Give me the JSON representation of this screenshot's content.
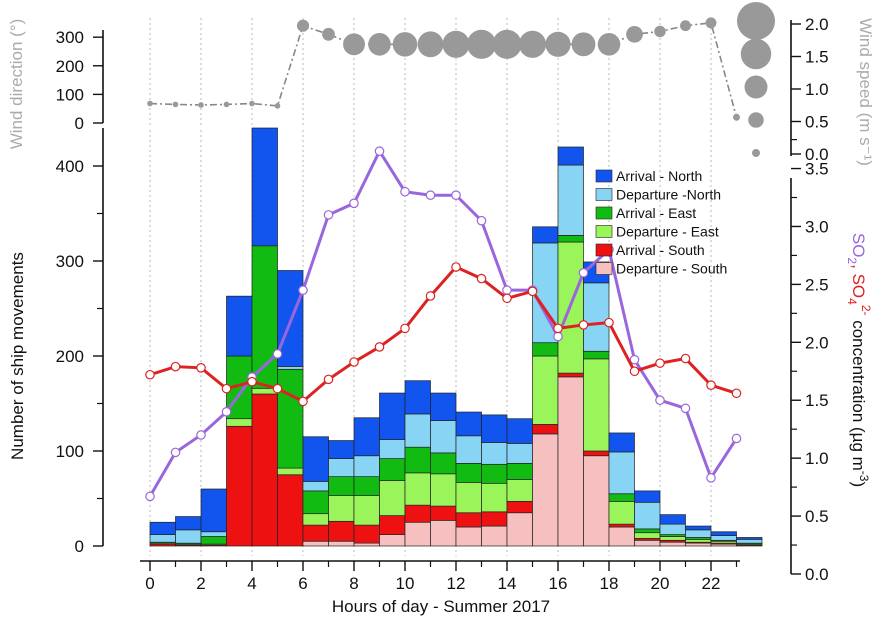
{
  "chart_data": [
    {
      "type": "scatter",
      "panel": "top",
      "x": [
        0,
        1,
        2,
        3,
        4,
        5,
        6,
        7,
        8,
        9,
        10,
        11,
        12,
        13,
        14,
        15,
        16,
        17,
        18,
        19,
        20,
        21,
        22,
        23
      ],
      "wind_direction": [
        68,
        65,
        63,
        65,
        68,
        60,
        340,
        310,
        275,
        275,
        275,
        275,
        275,
        275,
        275,
        275,
        275,
        275,
        275,
        310,
        320,
        340,
        350,
        20
      ],
      "wind_speed": [
        0.05,
        0.05,
        0.05,
        0.05,
        0.05,
        0.05,
        0.55,
        0.6,
        1.3,
        1.35,
        1.5,
        1.6,
        1.7,
        1.85,
        1.85,
        1.7,
        1.55,
        1.45,
        1.35,
        0.9,
        0.5,
        0.45,
        0.45,
        0.15
      ],
      "ylabel_left": "Wind direction (°)",
      "ylabel_right": "Wind speed (m s⁻¹)",
      "left_ticks": [
        "0",
        "100",
        "200",
        "300"
      ],
      "right_ticks": [
        "0.0",
        "0.5",
        "1.0",
        "1.5",
        "2.0"
      ],
      "ylim_left": [
        0,
        360
      ],
      "size_legend": [
        2.0,
        1.5,
        1.0,
        0.5,
        0.0
      ],
      "colors": {
        "marker": "#999999",
        "line": "#888888"
      }
    },
    {
      "type": "bar",
      "panel": "bottom",
      "stacked": true,
      "categories": [
        0,
        1,
        2,
        3,
        4,
        5,
        6,
        7,
        8,
        9,
        10,
        11,
        12,
        13,
        14,
        15,
        16,
        17,
        18,
        19,
        20,
        21,
        22,
        23
      ],
      "series": [
        {
          "name": "Departure - South",
          "color": "#f7c0c0",
          "values": [
            0,
            0,
            0,
            0,
            0,
            0,
            5,
            5,
            3,
            12,
            25,
            27,
            20,
            21,
            35,
            118,
            178,
            95,
            20,
            6,
            4,
            3,
            2,
            0
          ]
        },
        {
          "name": "Arrival - South",
          "color": "#ee1111",
          "values": [
            2,
            1,
            1,
            126,
            160,
            75,
            17,
            21,
            19,
            20,
            18,
            15,
            15,
            15,
            12,
            10,
            4,
            5,
            3,
            2,
            2,
            1,
            1,
            1
          ]
        },
        {
          "name": "Departure - East",
          "color": "#99f55a",
          "values": [
            1,
            1,
            1,
            8,
            6,
            7,
            12,
            27,
            31,
            37,
            34,
            34,
            32,
            30,
            23,
            72,
            138,
            97,
            24,
            6,
            4,
            3,
            2,
            1
          ]
        },
        {
          "name": "Arrival - East",
          "color": "#11bb11",
          "values": [
            1,
            1,
            8,
            66,
            150,
            104,
            24,
            20,
            20,
            23,
            27,
            22,
            20,
            20,
            17,
            14,
            7,
            8,
            8,
            4,
            2,
            2,
            1,
            1
          ]
        },
        {
          "name": "Departure -North",
          "color": "#88d4f5",
          "values": [
            8,
            14,
            5,
            0,
            0,
            3,
            10,
            19,
            22,
            20,
            35,
            34,
            29,
            23,
            21,
            105,
            74,
            72,
            44,
            28,
            11,
            8,
            5,
            4
          ]
        },
        {
          "name": "Arrival - North",
          "color": "#1155ee",
          "values": [
            13,
            14,
            45,
            63,
            124,
            101,
            47,
            19,
            40,
            49,
            35,
            29,
            25,
            29,
            26,
            17,
            19,
            22,
            20,
            12,
            10,
            4,
            4,
            2
          ]
        }
      ],
      "lines": [
        {
          "axis": "right",
          "color": "#9966dd",
          "values": [
            0.67,
            1.05,
            1.2,
            1.4,
            1.7,
            1.9,
            2.45,
            3.1,
            3.2,
            3.65,
            3.3,
            3.27,
            3.27,
            3.05,
            2.45,
            2.45,
            2.05,
            2.6,
            2.8,
            1.85,
            1.5,
            1.43,
            0.83,
            1.17
          ]
        },
        {
          "axis": "right",
          "color": "#dd2222",
          "values": [
            1.72,
            1.79,
            1.78,
            1.6,
            1.66,
            1.6,
            1.49,
            1.68,
            1.83,
            1.96,
            2.12,
            2.4,
            2.65,
            2.55,
            2.38,
            2.44,
            2.12,
            2.15,
            2.17,
            1.75,
            1.82,
            1.86,
            1.63,
            1.56
          ]
        }
      ],
      "xlabel": "Hours of day - Summer 2017",
      "ylabel": "Number of ship movements",
      "ylabel_right_parts": {
        "so2": "SO",
        "sub2": "2",
        "comma": ", ",
        "so4": "SO",
        "sub4": "4",
        "sup": "2-",
        "rest": " concentration (µg m",
        "exp": "-3",
        "close": ")"
      },
      "xticks": [
        "0",
        "2",
        "4",
        "6",
        "8",
        "10",
        "12",
        "14",
        "16",
        "18",
        "20",
        "22"
      ],
      "yticks_left": [
        "0",
        "100",
        "200",
        "300",
        "400"
      ],
      "yticks_right": [
        "0.0",
        "0.5",
        "1.0",
        "1.5",
        "2.0",
        "2.5",
        "3.0",
        "3.5"
      ],
      "ylim": [
        0,
        440
      ],
      "ylim_right": [
        0,
        3.85
      ],
      "legend_position": "top-right"
    }
  ]
}
